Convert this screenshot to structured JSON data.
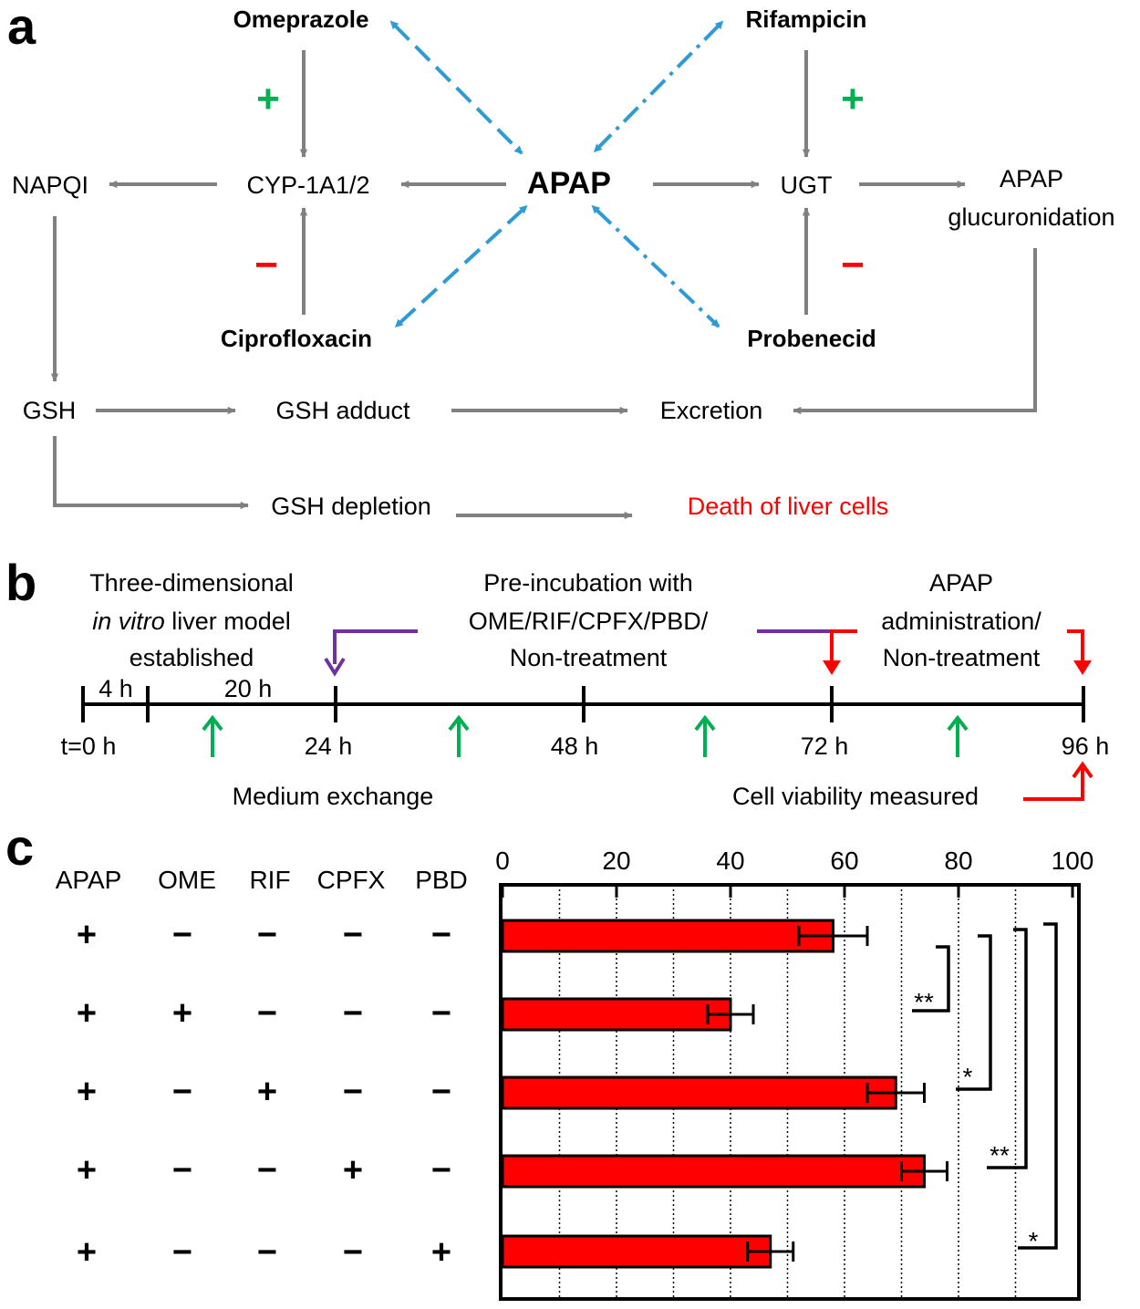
{
  "panel_a": {
    "letter": "a",
    "omeprazole": "Omeprazole",
    "rifampicin": "Rifampicin",
    "ciprofloxacin": "Ciprofloxacin",
    "probenecid": "Probenecid",
    "apap": "APAP",
    "cyp": "CYP-1A1/2",
    "napqi": "NAPQI",
    "ugt": "UGT",
    "apap_gluc_line1": "APAP",
    "apap_gluc_line2": "glucuronidation",
    "gsh": "GSH",
    "gsh_adduct": "GSH adduct",
    "excretion": "Excretion",
    "gsh_depletion": "GSH depletion",
    "death": "Death of liver cells",
    "plus": "+",
    "minus": "−",
    "colors": {
      "plus": "#00b050",
      "minus": "#ff0000",
      "arrow": "#808080",
      "interaction": "#2e9bd6"
    }
  },
  "panel_b": {
    "letter": "b",
    "model_line1": "Three-dimensional",
    "model_italic": "in vitro",
    "model_line2_rest": " liver model",
    "model_line3": "established",
    "preinc_line1": "Pre-incubation with",
    "preinc_line2": "OME/RIF/CPFX/PBD/",
    "preinc_line3": "Non-treatment",
    "apap_line1": "APAP",
    "apap_line2": "administration/",
    "apap_line3": "Non-treatment",
    "dur_4h": "4 h",
    "dur_20h": "20 h",
    "ticks": [
      "t=0 h",
      "24 h",
      "48 h",
      "72 h",
      "96 h"
    ],
    "medium_exchange": "Medium exchange",
    "viability": "Cell viability measured",
    "colors": {
      "purple": "#7030a0",
      "red": "#ff0000",
      "green": "#00b050"
    }
  },
  "panel_c": {
    "letter": "c",
    "columns": [
      "APAP",
      "OME",
      "RIF",
      "CPFX",
      "PBD"
    ],
    "rows": [
      [
        "+",
        "−",
        "−",
        "−",
        "−"
      ],
      [
        "+",
        "+",
        "−",
        "−",
        "−"
      ],
      [
        "+",
        "−",
        "+",
        "−",
        "−"
      ],
      [
        "+",
        "−",
        "−",
        "+",
        "−"
      ],
      [
        "+",
        "−",
        "−",
        "−",
        "+"
      ]
    ],
    "significance": [
      "**",
      "*",
      "**",
      "*"
    ]
  },
  "chart_data": {
    "type": "bar",
    "orientation": "horizontal",
    "categories": [
      "APAP",
      "APAP+OME",
      "APAP+RIF",
      "APAP+CPFX",
      "APAP+PBD"
    ],
    "values": [
      58,
      40,
      69,
      74,
      47
    ],
    "errors": [
      6,
      4,
      5,
      4,
      4
    ],
    "xlim": [
      0,
      100
    ],
    "xticks": [
      0,
      20,
      40,
      60,
      80,
      100
    ],
    "grid": true,
    "bar_color": "#ff0000",
    "significance_vs_first": [
      {
        "row": 1,
        "label": "**"
      },
      {
        "row": 2,
        "label": "*"
      },
      {
        "row": 3,
        "label": "**"
      },
      {
        "row": 4,
        "label": "*"
      }
    ]
  }
}
